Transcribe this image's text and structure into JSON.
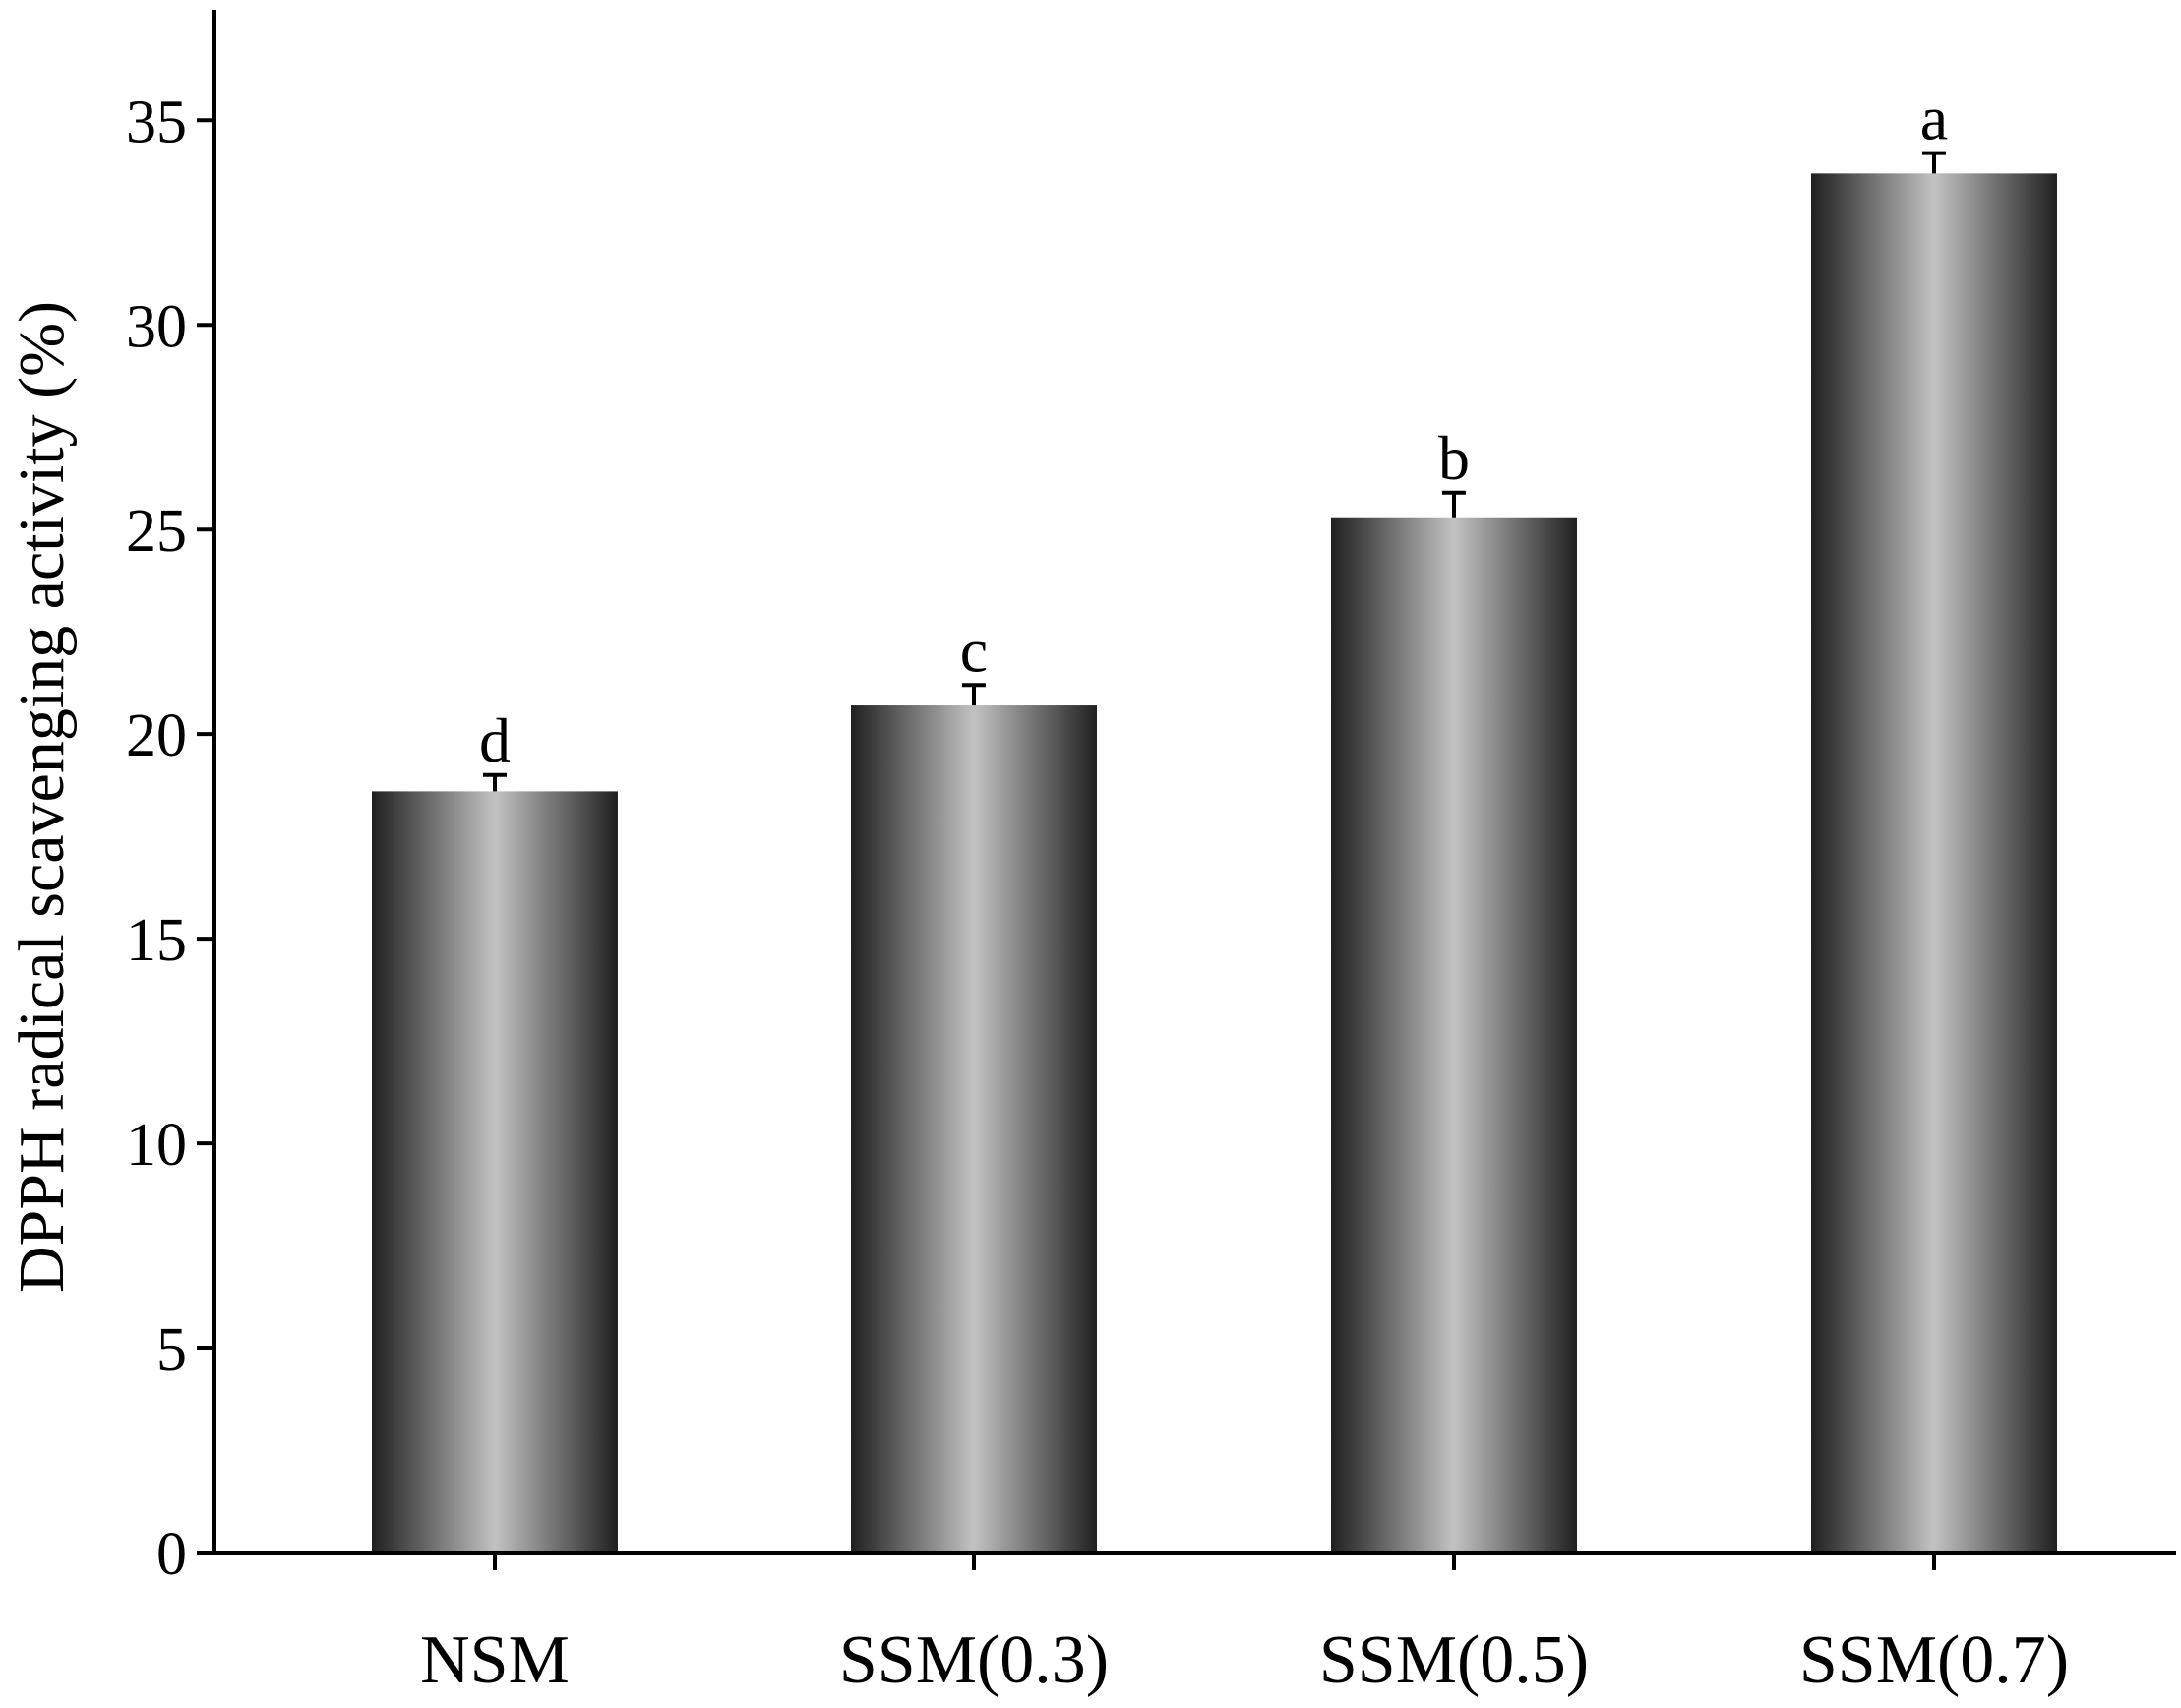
{
  "chart_data": {
    "type": "bar",
    "categories": [
      "NSM",
      "SSM(0.3)",
      "SSM(0.5)",
      "SSM(0.7)"
    ],
    "values": [
      18.6,
      20.7,
      25.3,
      33.7
    ],
    "errors": [
      0.4,
      0.5,
      0.6,
      0.5
    ],
    "significance_letters": [
      "d",
      "c",
      "b",
      "a"
    ],
    "ylabel": "DPPH radical scavenging activity (%)",
    "xlabel": "",
    "ylim": [
      0,
      37.7
    ],
    "yticks": [
      0,
      5,
      10,
      15,
      20,
      25,
      30,
      35
    ],
    "grid": false,
    "colors": {
      "bar_edge": "#202020",
      "bar_center": "#c2c2c2",
      "axis": "#000000"
    }
  }
}
